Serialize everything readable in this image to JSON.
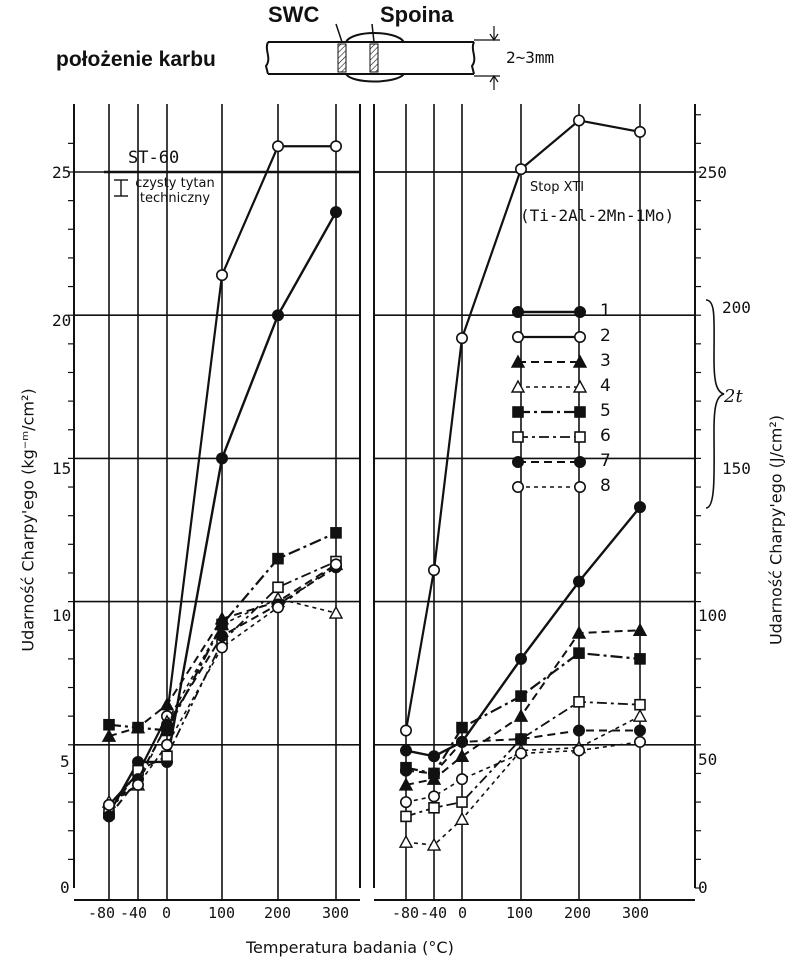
{
  "header": {
    "haz_label": "SWC",
    "weld_label": "Spoina",
    "notch_label": "położenie karbu",
    "thickness_label": "2~3mm"
  },
  "axes": {
    "y_left_title": "Udarność Charpy'ego (kg⁻ᵐ/cm²)",
    "y_right_title": "Udarność Charpy'ego (J/cm²)",
    "x_title": "Temperatura badania (°C)",
    "y_left_ticks": [
      "0",
      "5",
      "10",
      "15",
      "20",
      "25"
    ],
    "y_right_ticks": [
      "0",
      "50",
      "100",
      "150",
      "200",
      "250"
    ],
    "x_ticks": [
      "-80",
      "-40",
      "0",
      "100",
      "200",
      "300"
    ]
  },
  "annotations": {
    "st60": "ST-60",
    "pure_ti": "czysty tytan techniczny",
    "alloy_name": "Stop XTI",
    "alloy_comp": "(Ti-2Al-2Mn-1Mo)",
    "range_label": "2t"
  },
  "legend": [
    "1",
    "2",
    "3",
    "4",
    "5",
    "6",
    "7",
    "8"
  ],
  "chart_data": {
    "type": "line",
    "xlabel": "Temperatura badania (°C)",
    "ylabel": "Udarność Charpy'ego (kg⁻ᵐ/cm²)",
    "ylabel_right": "Udarność Charpy'ego (J/cm²)",
    "ylim": [
      0,
      27
    ],
    "ylim_right_J": [
      0,
      270
    ],
    "x_ticks": [
      -80,
      -40,
      0,
      100,
      200,
      300
    ],
    "y_ticks": [
      0,
      5,
      10,
      15,
      20,
      25
    ],
    "y_ticks_right": [
      0,
      50,
      100,
      150,
      200,
      250
    ],
    "grid": true,
    "panels": [
      {
        "subtitle": "czysty tytan techniczny",
        "series": [
          {
            "name": "1",
            "x": [
              -80,
              -40,
              0,
              100,
              200,
              300
            ],
            "y": [
              2.6,
              4.4,
              4.4,
              15.0,
              20.0,
              23.6
            ]
          },
          {
            "name": "2",
            "x": [
              -80,
              -40,
              0,
              100,
              200,
              300
            ],
            "y": [
              2.9,
              4.0,
              6.0,
              21.4,
              25.9,
              25.9
            ]
          },
          {
            "name": "3",
            "x": [
              -80,
              -40,
              0,
              100,
              200,
              300
            ],
            "y": [
              5.3,
              5.6,
              6.4,
              9.4,
              10.0,
              11.3
            ]
          },
          {
            "name": "4",
            "x": [
              -80,
              -40,
              0,
              100,
              200,
              300
            ],
            "y": [
              3.0,
              3.6,
              5.8,
              9.2,
              10.1,
              9.6
            ]
          },
          {
            "name": "5",
            "x": [
              -80,
              -40,
              0,
              100,
              200,
              300
            ],
            "y": [
              5.7,
              5.6,
              5.5,
              9.2,
              11.5,
              12.4
            ]
          },
          {
            "name": "6",
            "x": [
              -80,
              -40,
              0,
              100,
              200,
              300
            ],
            "y": [
              2.6,
              4.1,
              4.6,
              8.6,
              10.5,
              11.4
            ]
          },
          {
            "name": "7",
            "x": [
              -80,
              -40,
              0,
              100,
              200,
              300
            ],
            "y": [
              2.5,
              3.8,
              5.7,
              8.8,
              9.9,
              11.2
            ]
          },
          {
            "name": "8",
            "x": [
              -80,
              -40,
              0,
              100,
              200,
              300
            ],
            "y": [
              2.9,
              3.6,
              5.0,
              8.4,
              9.8,
              11.3
            ]
          }
        ]
      },
      {
        "subtitle": "Stop XTI (Ti-2Al-2Mn-1Mo)",
        "series": [
          {
            "name": "1",
            "x": [
              -80,
              -40,
              0,
              100,
              200,
              300
            ],
            "y": [
              4.8,
              4.6,
              5.1,
              8.0,
              10.7,
              13.3
            ]
          },
          {
            "name": "2",
            "x": [
              -80,
              -40,
              0,
              100,
              200,
              300
            ],
            "y": [
              5.5,
              11.1,
              19.2,
              25.1,
              26.8,
              26.4
            ]
          },
          {
            "name": "3",
            "x": [
              -80,
              -40,
              0,
              100,
              200,
              300
            ],
            "y": [
              3.6,
              3.8,
              4.6,
              6.0,
              8.9,
              9.0
            ]
          },
          {
            "name": "4",
            "x": [
              -80,
              -40,
              0,
              100,
              200,
              300
            ],
            "y": [
              1.6,
              1.5,
              2.4,
              4.8,
              4.9,
              6.0
            ]
          },
          {
            "name": "5",
            "x": [
              -80,
              -40,
              0,
              100,
              200,
              300
            ],
            "y": [
              4.2,
              4.0,
              5.6,
              6.7,
              8.2,
              8.0
            ]
          },
          {
            "name": "6",
            "x": [
              -80,
              -40,
              0,
              100,
              200,
              300
            ],
            "y": [
              2.5,
              2.8,
              3.0,
              5.2,
              6.5,
              6.4
            ]
          },
          {
            "name": "7",
            "x": [
              -80,
              -40,
              0,
              100,
              200,
              300
            ],
            "y": [
              4.1,
              4.0,
              5.1,
              5.2,
              5.5,
              5.5
            ]
          },
          {
            "name": "8",
            "x": [
              -80,
              -40,
              0,
              100,
              200,
              300
            ],
            "y": [
              3.0,
              3.2,
              3.8,
              4.7,
              4.8,
              5.1
            ]
          }
        ]
      }
    ]
  }
}
